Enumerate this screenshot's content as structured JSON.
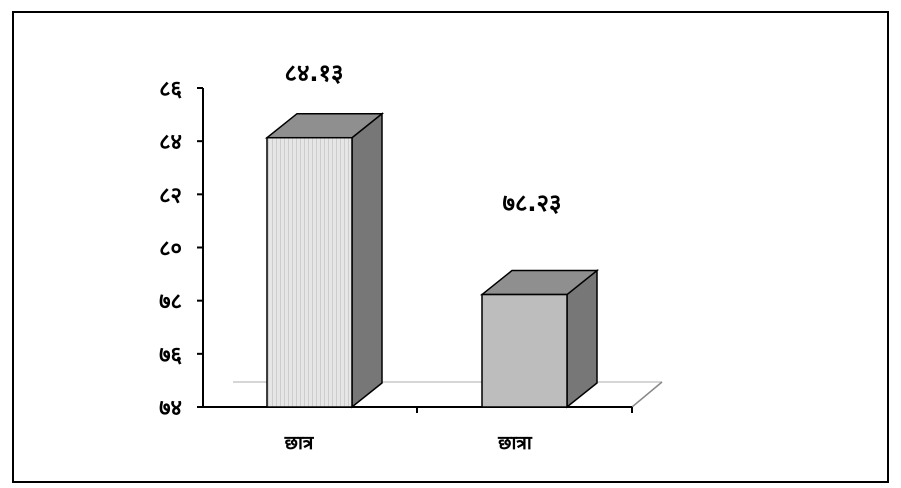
{
  "chart_data": {
    "type": "bar",
    "title": "",
    "xlabel": "",
    "ylabel": "",
    "categories": [
      "छात्र",
      "छात्रा"
    ],
    "values": [
      84.13,
      78.23
    ],
    "value_labels": [
      "८४.१३",
      "७८.२३"
    ],
    "ylim": [
      74,
      86
    ],
    "y_ticks": [
      74,
      76,
      78,
      80,
      82,
      84,
      86
    ],
    "y_tick_labels": [
      "७४",
      "७६",
      "७८",
      "८०",
      "८२",
      "८४",
      "८६"
    ],
    "grid": false,
    "legend": false,
    "style": "3d-column",
    "colors": {
      "bar1_front": "#e4e4e4",
      "bar1_stripe": "#cfcfcf",
      "bar2_front": "#bdbdbd",
      "bar_top": "#8f8f8f",
      "bar_side": "#777777",
      "frame": "#000000",
      "floor": "#bdbdbd"
    }
  }
}
